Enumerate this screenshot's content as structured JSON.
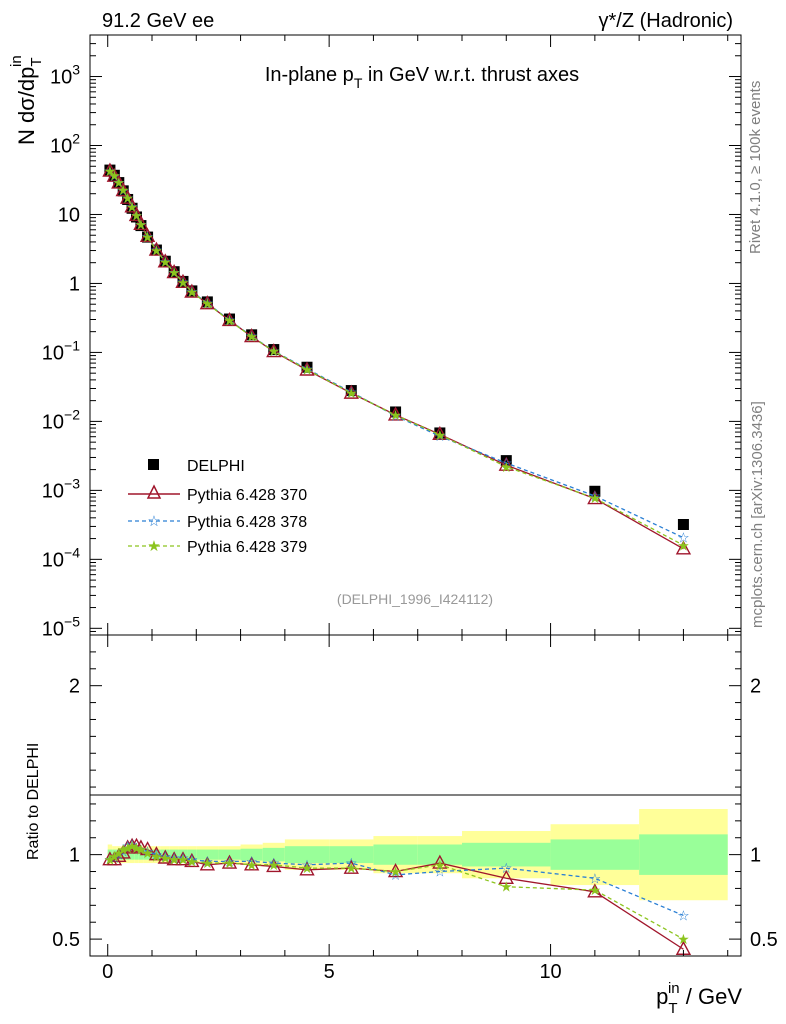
{
  "header": {
    "left": "91.2 GeV ee",
    "right": "γ*/Z (Hadronic)"
  },
  "side_labels": {
    "rivet": "Rivet 4.1.0, ≥ 100k events",
    "mcplots": "mcplots.cern.ch [arXiv:1306.3436]"
  },
  "colors": {
    "data": "#000000",
    "p370": "#a0162c",
    "p378": "#2a7fd4",
    "p379": "#8cc41e",
    "band_inner": "#99ff99",
    "band_outer": "#ffff99"
  },
  "chart_data": [
    {
      "type": "scatter",
      "title": "In-plane p_T in GeV w.r.t. thrust axes",
      "title_parts": {
        "main": "In-plane p",
        "sub": "T",
        "rest": " in GeV w.r.t. thrust axes"
      },
      "ylabel": "N  dσ/dp_T^in",
      "ylabel_parts": {
        "main": "N  dσ/dp",
        "sub": "T",
        "sup": "in"
      },
      "xlabel": "p_T^in / GeV",
      "yscale": "log",
      "xlim": [
        -0.4,
        14.3
      ],
      "ylim": [
        8e-06,
        4000
      ],
      "y_ticks": [
        {
          "value": 1000,
          "label_base": "10",
          "label_exp": "3"
        },
        {
          "value": 100,
          "label_base": "10",
          "label_exp": "2"
        },
        {
          "value": 10,
          "label_base": "10",
          "label_exp": ""
        },
        {
          "value": 1,
          "label_base": "1",
          "label_exp": ""
        },
        {
          "value": 0.1,
          "label_base": "10",
          "label_exp": "−1"
        },
        {
          "value": 0.01,
          "label_base": "10",
          "label_exp": "−2"
        },
        {
          "value": 0.001,
          "label_base": "10",
          "label_exp": "−3"
        },
        {
          "value": 0.0001,
          "label_base": "10",
          "label_exp": "−4"
        },
        {
          "value": 1e-05,
          "label_base": "10",
          "label_exp": "−5"
        }
      ],
      "reference": "(DELPHI_1996_I424112)",
      "legend": [
        "DELPHI",
        "Pythia 6.428 370",
        "Pythia 6.428 378",
        "Pythia 6.428 379"
      ],
      "x": [
        0.05,
        0.15,
        0.25,
        0.35,
        0.45,
        0.55,
        0.65,
        0.75,
        0.9,
        1.1,
        1.3,
        1.5,
        1.7,
        1.9,
        2.25,
        2.75,
        3.25,
        3.75,
        4.5,
        5.5,
        6.5,
        7.5,
        9.0,
        11.0,
        13.0
      ],
      "series": [
        {
          "name": "DELPHI",
          "values": [
            44,
            37,
            29,
            22,
            16.5,
            12.3,
            9.2,
            6.9,
            4.7,
            3.05,
            2.1,
            1.48,
            1.07,
            0.78,
            0.54,
            0.305,
            0.18,
            0.11,
            0.061,
            0.028,
            0.0137,
            0.0068,
            0.0027,
            0.00097,
            0.00032
          ]
        },
        {
          "name": "Pythia 6.428 370",
          "values": [
            42.7,
            35.9,
            28.7,
            22.2,
            17.2,
            12.9,
            9.7,
            7.2,
            4.83,
            3.05,
            2.06,
            1.44,
            1.04,
            0.75,
            0.51,
            0.291,
            0.17,
            0.103,
            0.0556,
            0.0257,
            0.0124,
            0.0065,
            0.00232,
            0.00076,
            0.000142
          ]
        },
        {
          "name": "Pythia 6.428 378",
          "values": [
            42.7,
            36.3,
            29.0,
            22.4,
            17.3,
            13.0,
            9.6,
            7.1,
            4.79,
            3.04,
            2.08,
            1.45,
            1.05,
            0.76,
            0.52,
            0.293,
            0.172,
            0.105,
            0.0575,
            0.0266,
            0.012,
            0.0061,
            0.00249,
            0.00083,
            0.000206
          ]
        },
        {
          "name": "Pythia 6.428 379",
          "values": [
            42.7,
            36.6,
            29.3,
            22.6,
            17.2,
            12.9,
            9.6,
            7.1,
            4.75,
            3.01,
            2.06,
            1.43,
            1.04,
            0.75,
            0.51,
            0.289,
            0.17,
            0.104,
            0.0562,
            0.0259,
            0.0123,
            0.0064,
            0.0022,
            0.00077,
            0.00016
          ]
        }
      ]
    },
    {
      "type": "line",
      "title": "Ratio to DELPHI",
      "ylabel": "Ratio to DELPHI",
      "xlabel": "p_T^in / GeV",
      "xlabel_parts": {
        "main": "p",
        "sub": "T",
        "sup": "in",
        "rest": " / GeV"
      },
      "xlim": [
        -0.4,
        14.3
      ],
      "ylim": [
        0.4,
        2.3
      ],
      "x_ticks": [
        0,
        5,
        10
      ],
      "y_ticks": [
        0.5,
        1,
        2
      ],
      "y_tick_labels": [
        "0.5",
        "1",
        "2"
      ],
      "x": [
        0.05,
        0.15,
        0.25,
        0.35,
        0.45,
        0.55,
        0.65,
        0.75,
        0.9,
        1.1,
        1.3,
        1.5,
        1.7,
        1.9,
        2.25,
        2.75,
        3.25,
        3.75,
        4.5,
        5.5,
        6.5,
        7.5,
        9.0,
        11.0,
        13.0
      ],
      "bin_edges": [
        0,
        0.1,
        0.2,
        0.3,
        0.4,
        0.5,
        0.6,
        0.7,
        0.8,
        1.0,
        1.2,
        1.4,
        1.6,
        1.8,
        2.0,
        2.5,
        3.0,
        3.5,
        4.0,
        5.0,
        6.0,
        7.0,
        8.0,
        10.0,
        12.0,
        14.0
      ],
      "band_inner": [
        0.03,
        0.03,
        0.03,
        0.03,
        0.03,
        0.03,
        0.03,
        0.03,
        0.03,
        0.03,
        0.03,
        0.03,
        0.03,
        0.03,
        0.03,
        0.03,
        0.035,
        0.04,
        0.05,
        0.05,
        0.06,
        0.06,
        0.07,
        0.09,
        0.12
      ],
      "band_outer": [
        0.06,
        0.05,
        0.05,
        0.05,
        0.05,
        0.05,
        0.05,
        0.05,
        0.05,
        0.05,
        0.05,
        0.05,
        0.05,
        0.05,
        0.05,
        0.05,
        0.06,
        0.07,
        0.09,
        0.09,
        0.11,
        0.11,
        0.14,
        0.18,
        0.27
      ],
      "series": [
        {
          "name": "Pythia 6.428 370",
          "values": [
            0.97,
            0.97,
            0.99,
            1.01,
            1.04,
            1.05,
            1.05,
            1.04,
            1.03,
            1.0,
            0.98,
            0.97,
            0.97,
            0.96,
            0.94,
            0.95,
            0.94,
            0.93,
            0.91,
            0.92,
            0.9,
            0.95,
            0.86,
            0.78,
            0.44
          ]
        },
        {
          "name": "Pythia 6.428 378",
          "values": [
            0.97,
            0.98,
            1.0,
            1.02,
            1.05,
            1.06,
            1.04,
            1.03,
            1.02,
            1.0,
            0.99,
            0.98,
            0.98,
            0.97,
            0.96,
            0.96,
            0.96,
            0.95,
            0.94,
            0.95,
            0.88,
            0.9,
            0.92,
            0.86,
            0.64
          ]
        },
        {
          "name": "Pythia 6.428 379",
          "values": [
            0.97,
            0.99,
            1.01,
            1.03,
            1.04,
            1.05,
            1.04,
            1.03,
            1.01,
            0.99,
            0.98,
            0.97,
            0.97,
            0.96,
            0.95,
            0.95,
            0.94,
            0.94,
            0.92,
            0.92,
            0.9,
            0.94,
            0.81,
            0.79,
            0.5
          ]
        }
      ]
    }
  ]
}
